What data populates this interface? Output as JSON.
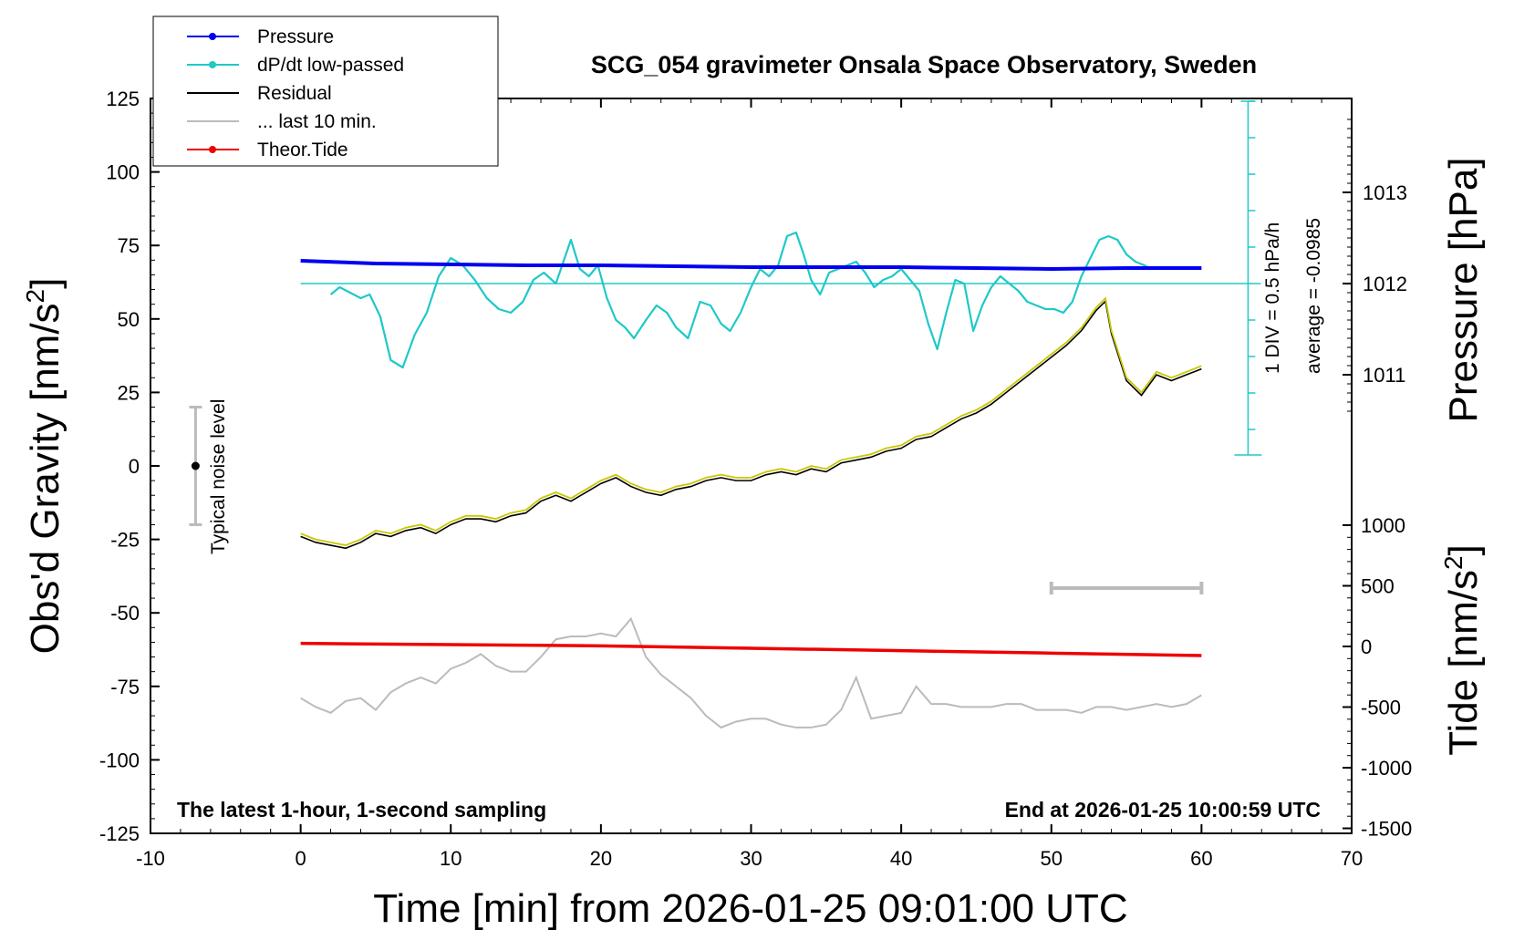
{
  "chart_data": {
    "type": "line",
    "title": "SCG_054 gravimeter Onsala Space Observatory, Sweden",
    "xlabel": "Time [min] from 2026-01-25 09:01:00 UTC",
    "ylabel_left": "Obs'd Gravity [nm/s",
    "ylabel_left_sup": "2",
    "ylabel_left_close": "]",
    "ylabel_pressure": "Pressure [hPa]",
    "ylabel_tide": "Tide [nm/s",
    "ylabel_tide_sup": "2",
    "ylabel_tide_close": "]",
    "xlim": [
      -10,
      70
    ],
    "ylim": [
      -125,
      125
    ],
    "x_ticks": [
      -10,
      0,
      10,
      20,
      30,
      40,
      50,
      60,
      70
    ],
    "y_ticks": [
      125,
      100,
      75,
      50,
      25,
      0,
      -25,
      -50,
      -75,
      -100,
      -125
    ],
    "pressure_ticks": [
      1013,
      1012,
      1011
    ],
    "tide_ticks": [
      1000,
      500,
      0,
      -500,
      -1000,
      -1500
    ],
    "legend": [
      {
        "label": "Pressure",
        "color": "#0000ee",
        "marker": true
      },
      {
        "label": "dP/dt low-passed",
        "color": "#20c8c8",
        "marker": true
      },
      {
        "label": "Residual",
        "color": "#000000",
        "marker": false
      },
      {
        "label": "... last 10 min.",
        "color": "#bbbbbb",
        "marker": false
      },
      {
        "label": "Theor.Tide",
        "color": "#ee0000",
        "marker": true
      }
    ],
    "annotations": {
      "left_note": "The latest 1-hour, 1-second sampling",
      "right_note": "End at 2026-01-25 10:00:59 UTC",
      "noise_label": "Typical noise level",
      "dpdt_div": "1 DIV = 0.5 hPa/h",
      "dpdt_avg": "average = -0.0985"
    },
    "noise_bar": {
      "x": -7,
      "center": 0,
      "half_range": 20
    },
    "last10_bar": {
      "x_start": 50,
      "x_end": 60
    },
    "series": [
      {
        "name": "Residual",
        "color": "#000000",
        "x": [
          0,
          1,
          2,
          3,
          4,
          5,
          6,
          7,
          8,
          9,
          10,
          11,
          12,
          13,
          14,
          15,
          16,
          17,
          18,
          19,
          20,
          21,
          22,
          23,
          24,
          25,
          26,
          27,
          28,
          29,
          30,
          31,
          32,
          33,
          34,
          35,
          36,
          37,
          38,
          39,
          40,
          41,
          42,
          43,
          44,
          45,
          46,
          47,
          48,
          49,
          50,
          51,
          52,
          53,
          53.6,
          54,
          55,
          56,
          57,
          58,
          59,
          60
        ],
        "values": [
          -24,
          -26,
          -27,
          -28,
          -26,
          -23,
          -24,
          -22,
          -21,
          -23,
          -20,
          -18,
          -18,
          -19,
          -17,
          -16,
          -12,
          -10,
          -12,
          -9,
          -6,
          -4,
          -7,
          -9,
          -10,
          -8,
          -7,
          -5,
          -4,
          -5,
          -5,
          -3,
          -2,
          -3,
          -1,
          -2,
          1,
          2,
          3,
          5,
          6,
          9,
          10,
          13,
          16,
          18,
          21,
          25,
          29,
          33,
          37,
          41,
          46,
          53,
          56,
          45,
          29,
          24,
          31,
          29,
          31,
          33
        ]
      },
      {
        "name": "Pressure",
        "color": "#0000ee",
        "unit": "hPa",
        "x": [
          0,
          5,
          10,
          15,
          20,
          25,
          30,
          35,
          40,
          45,
          50,
          55,
          60
        ],
        "values": [
          1012.25,
          1012.22,
          1012.21,
          1012.2,
          1012.2,
          1012.19,
          1012.18,
          1012.18,
          1012.18,
          1012.17,
          1012.16,
          1012.17,
          1012.17
        ]
      },
      {
        "name": "dP/dt low-passed",
        "color": "#20c8c8",
        "unit": "DIV",
        "x": [
          2,
          2.6,
          3.3,
          4,
          4.6,
          5.3,
          6,
          6.8,
          7.6,
          8.4,
          9.2,
          10,
          10.8,
          11.6,
          12.4,
          13.2,
          14,
          14.8,
          15.5,
          16.2,
          17,
          17.5,
          18,
          18.6,
          19.2,
          19.8,
          20.4,
          21,
          21.6,
          22.2,
          23,
          23.7,
          24.4,
          25,
          25.8,
          26.6,
          27.3,
          28,
          28.6,
          29.3,
          30,
          30.6,
          31.2,
          31.8,
          32.4,
          33,
          33.5,
          34,
          34.6,
          35.2,
          35.8,
          36.4,
          37,
          37.6,
          38.2,
          38.8,
          39.4,
          40,
          40.6,
          41.2,
          41.8,
          42.4,
          43,
          43.6,
          44.2,
          44.8,
          45.4,
          46,
          46.6,
          47.2,
          47.8,
          48.4,
          49,
          49.6,
          50.2,
          50.8,
          51.4,
          52,
          52.6,
          53.2,
          53.8,
          54.4,
          55,
          55.6,
          56.2,
          56.6
        ],
        "values": [
          -0.3,
          -0.1,
          -0.25,
          -0.4,
          -0.3,
          -0.9,
          -2.1,
          -2.3,
          -1.4,
          -0.8,
          0.2,
          0.7,
          0.5,
          0.1,
          -0.4,
          -0.7,
          -0.8,
          -0.5,
          0.1,
          0.3,
          0,
          0.6,
          1.2,
          0.4,
          0.2,
          0.5,
          -0.4,
          -1.0,
          -1.2,
          -1.5,
          -1.0,
          -0.6,
          -0.8,
          -1.2,
          -1.5,
          -0.5,
          -0.6,
          -1.1,
          -1.3,
          -0.8,
          -0.1,
          0.4,
          0.2,
          0.5,
          1.3,
          1.4,
          0.8,
          0.1,
          -0.3,
          0.3,
          0.4,
          0.5,
          0.6,
          0.3,
          -0.1,
          0.1,
          0.2,
          0.4,
          0.1,
          -0.2,
          -1.1,
          -1.8,
          -0.8,
          0.1,
          0,
          -1.3,
          -0.6,
          -0.1,
          0.2,
          0,
          -0.2,
          -0.5,
          -0.6,
          -0.7,
          -0.7,
          -0.8,
          -0.5,
          0.2,
          0.7,
          1.2,
          1.3,
          1.2,
          0.8,
          0.6,
          0.5,
          0.4
        ]
      },
      {
        "name": "... last 10 min.",
        "color": "#bbbbbb",
        "x": [
          0,
          1,
          2,
          3,
          4,
          5,
          6,
          7,
          8,
          9,
          10,
          11,
          12,
          13,
          14,
          15,
          16,
          17,
          18,
          19,
          20,
          21,
          22,
          23,
          24,
          25,
          26,
          27,
          28,
          29,
          30,
          31,
          32,
          33,
          34,
          35,
          36,
          37,
          38,
          39,
          40,
          41,
          42,
          43,
          44,
          45,
          46,
          47,
          48,
          49,
          50,
          51,
          52,
          53,
          54,
          55,
          56,
          57,
          58,
          59,
          60
        ],
        "values": [
          -79,
          -82,
          -84,
          -80,
          -79,
          -83,
          -77,
          -74,
          -72,
          -74,
          -69,
          -67,
          -64,
          -68,
          -70,
          -70,
          -65,
          -59,
          -58,
          -58,
          -57,
          -58,
          -52,
          -65,
          -71,
          -75,
          -79,
          -85,
          -89,
          -87,
          -86,
          -86,
          -88,
          -89,
          -89,
          -88,
          -83,
          -72,
          -86,
          -85,
          -84,
          -75,
          -81,
          -81,
          -82,
          -82,
          -82,
          -81,
          -81,
          -83,
          -83,
          -83,
          -84,
          -82,
          -82,
          -83,
          -82,
          -81,
          -82,
          -81,
          -78
        ]
      },
      {
        "name": "Theor.Tide",
        "color": "#ee0000",
        "unit": "nm/s2",
        "x": [
          0,
          10,
          20,
          30,
          40,
          50,
          60
        ],
        "values": [
          25,
          15,
          5,
          -15,
          -35,
          -55,
          -75
        ]
      }
    ]
  }
}
